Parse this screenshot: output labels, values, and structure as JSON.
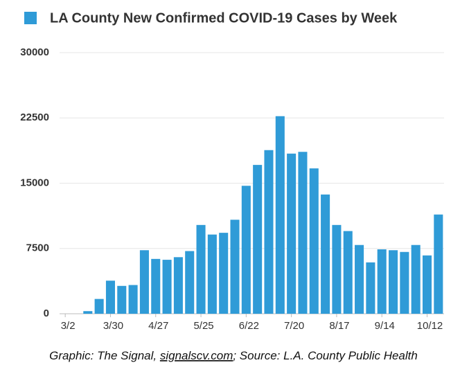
{
  "chart_data": {
    "type": "bar",
    "categories": [
      "3/2",
      null,
      null,
      null,
      "3/30",
      null,
      null,
      null,
      "4/27",
      null,
      null,
      null,
      "5/25",
      null,
      null,
      null,
      "6/22",
      null,
      null,
      null,
      "7/20",
      null,
      null,
      null,
      "8/17",
      null,
      null,
      null,
      "9/14",
      null,
      null,
      null,
      "10/12",
      null
    ],
    "series": [
      {
        "name": "LA County New Confirmed COVID-19 Cases by Week",
        "color": "#2f9bd7",
        "values": [
          0,
          0,
          300,
          1700,
          3800,
          3200,
          3300,
          7300,
          6300,
          6200,
          6500,
          7200,
          10200,
          9100,
          9300,
          10800,
          14700,
          17100,
          18800,
          22700,
          18400,
          18600,
          16700,
          13700,
          10200,
          9500,
          7900,
          5900,
          7400,
          7300,
          7100,
          7900,
          6700,
          11400
        ]
      }
    ],
    "ylim": [
      0,
      30000
    ],
    "yticks": [
      0,
      7500,
      15000,
      22500,
      30000
    ],
    "grid": true,
    "legend": "top",
    "source": {
      "before": "Graphic: The Signal, ",
      "link": "signalscv.com",
      "after": "; Source: L.A. County Public Health"
    }
  }
}
